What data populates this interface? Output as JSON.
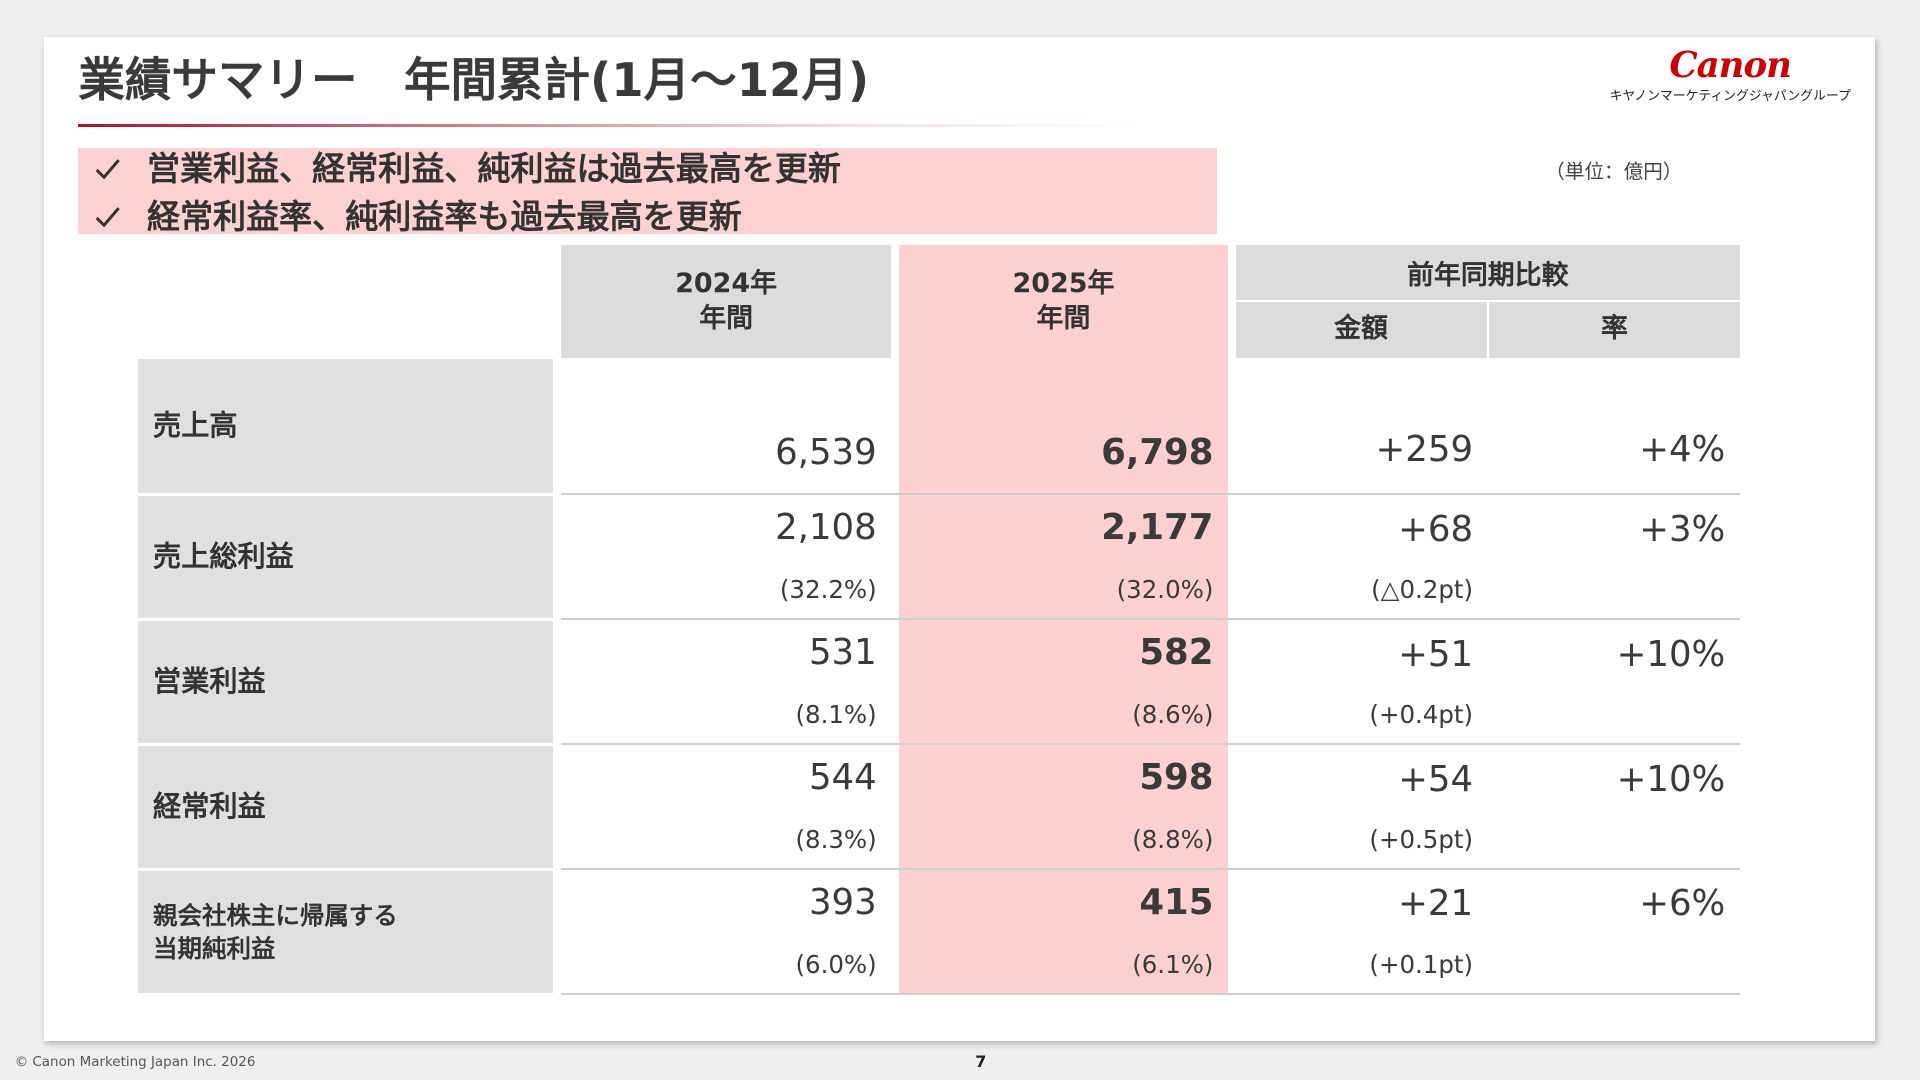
{
  "header": {
    "title": "業績サマリー　年間累計(1月～12月)",
    "logo": "Canon",
    "logo_sub": "キヤノンマーケティングジャパングループ"
  },
  "highlights": [
    "営業利益、経常利益、純利益は過去最高を更新",
    "経常利益率、純利益率も過去最高を更新"
  ],
  "unit": "（単位：億円）",
  "table": {
    "columns": [
      {
        "year": "2024年",
        "period": "年間"
      },
      {
        "year": "2025年",
        "period": "年間"
      }
    ],
    "comparison": {
      "title": "前年同期比較",
      "amount": "金額",
      "rate": "率"
    },
    "rows": [
      {
        "label": "売上高",
        "prev": "6,539",
        "curr": "6,798",
        "diff": "+259",
        "rate": "+4%"
      },
      {
        "label": "売上総利益",
        "prev": "2,108",
        "prev_ratio": "(32.2%)",
        "curr": "2,177",
        "curr_ratio": "(32.0%)",
        "diff": "+68",
        "diff_ratio": "(△0.2pt)",
        "rate": "+3%"
      },
      {
        "label": "営業利益",
        "prev": "531",
        "prev_ratio": "(8.1%)",
        "curr": "582",
        "curr_ratio": "(8.6%)",
        "diff": "+51",
        "diff_ratio": "(+0.4pt)",
        "rate": "+10%"
      },
      {
        "label": "経常利益",
        "prev": "544",
        "prev_ratio": "(8.3%)",
        "curr": "598",
        "curr_ratio": "(8.8%)",
        "diff": "+54",
        "diff_ratio": "(+0.5pt)",
        "rate": "+10%"
      },
      {
        "label": "親会社株主に帰属する\n当期純利益",
        "prev": "393",
        "prev_ratio": "(6.0%)",
        "curr": "415",
        "curr_ratio": "(6.1%)",
        "diff": "+21",
        "diff_ratio": "(+0.1pt)",
        "rate": "+6%"
      }
    ]
  },
  "footer": {
    "copyright": "© Canon Marketing Japan Inc. 2026",
    "page": "7"
  }
}
